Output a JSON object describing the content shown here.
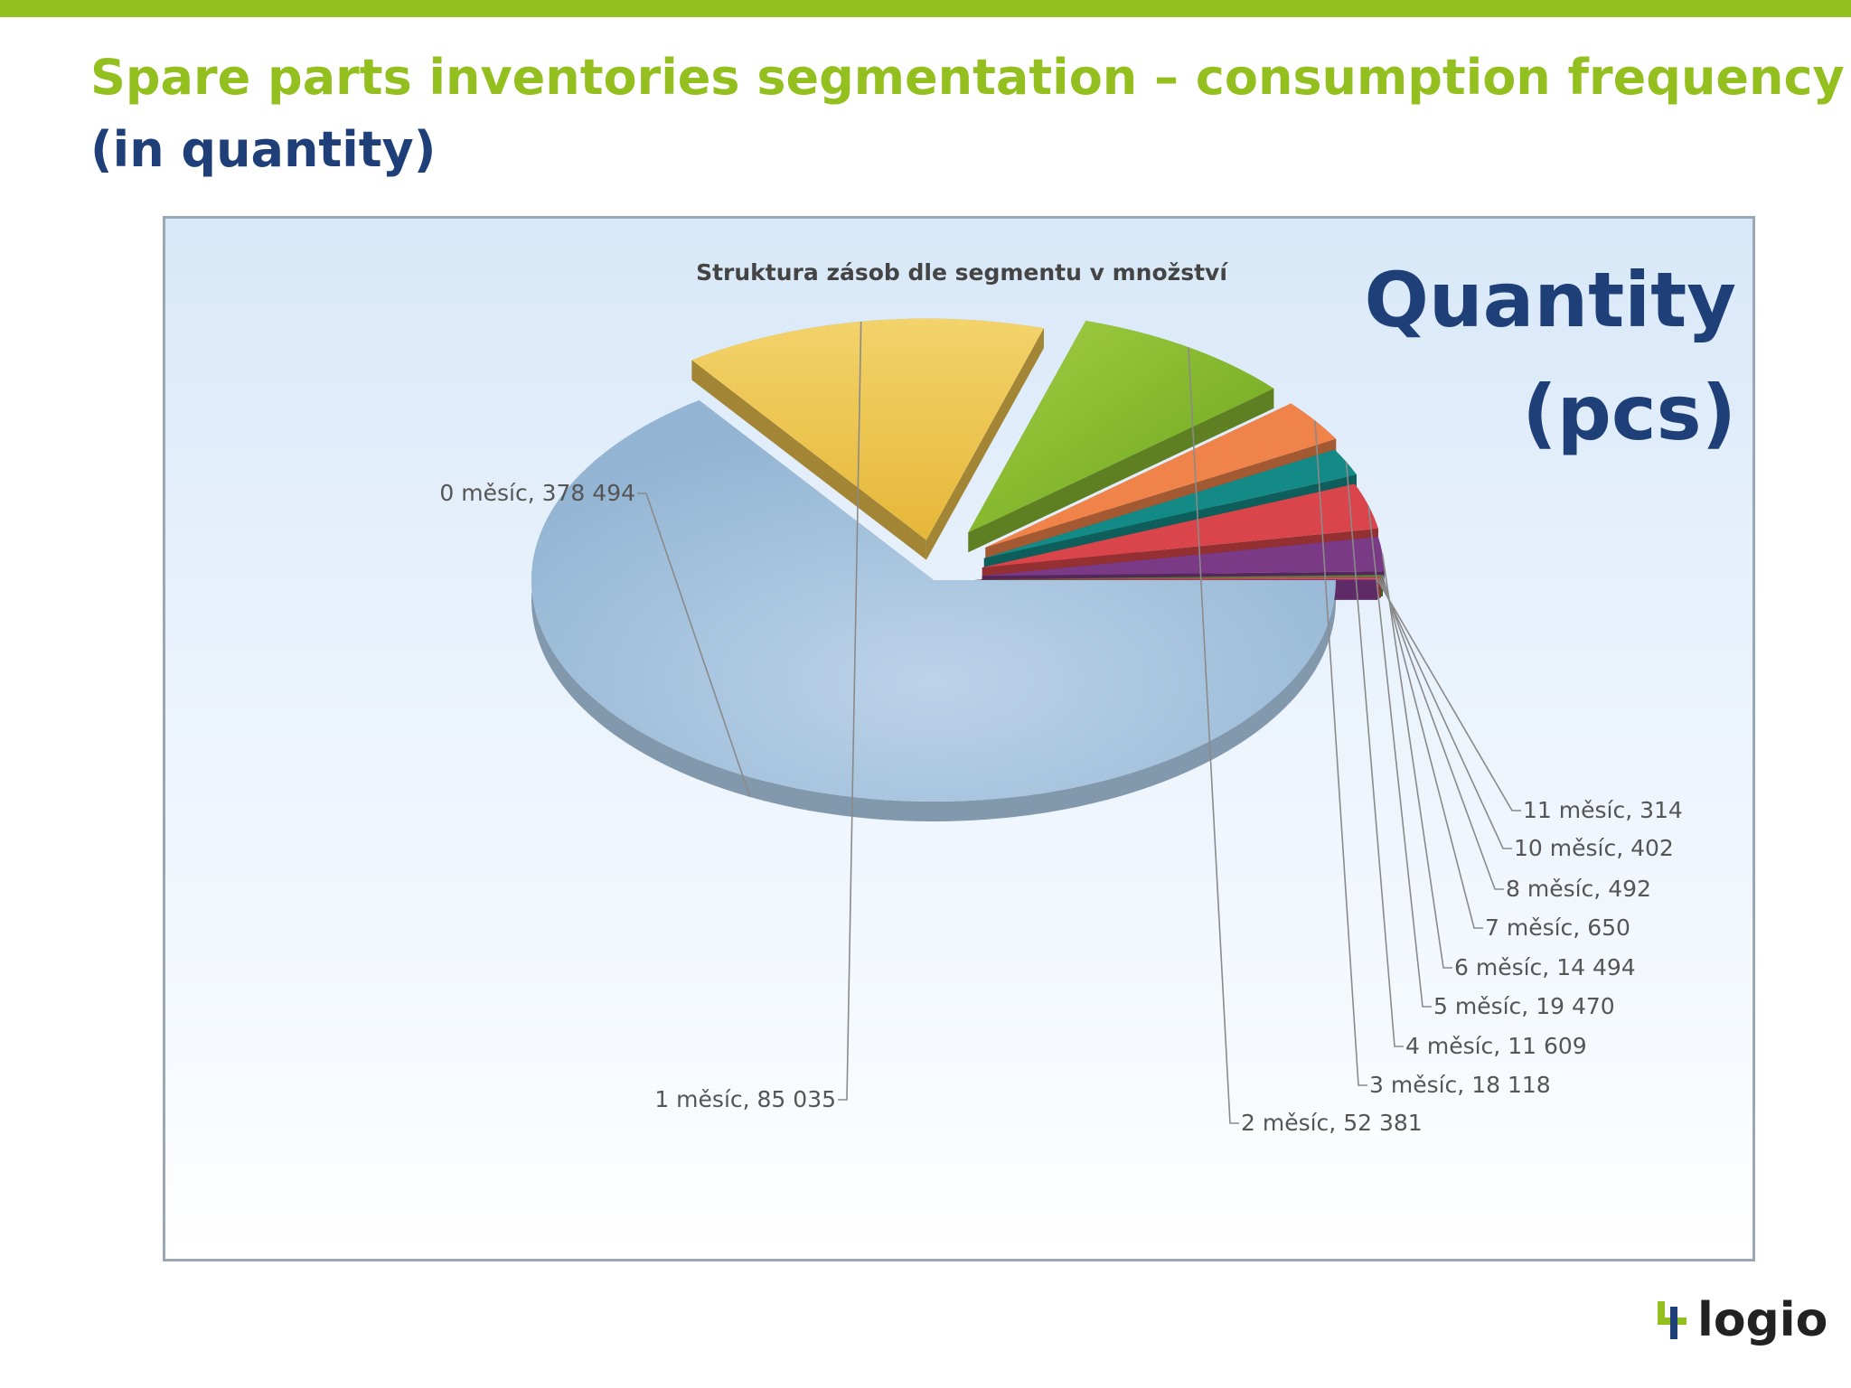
{
  "slide": {
    "title_line1": "Spare parts inventories segmentation – consumption frequency",
    "title_line2": "(in quantity)",
    "quantity_label_line1": "Quantity",
    "quantity_label_line2": "(pcs)",
    "logo_text": "logio",
    "accent_color": "#93c01f",
    "title_blue": "#1f3f78"
  },
  "chart_data": {
    "type": "pie",
    "title": "Struktura zásob dle segmentu v množství",
    "three_d": true,
    "exploded": true,
    "labels": [
      "0 měsíc",
      "1 měsíc",
      "2 měsíc",
      "3 měsíc",
      "4 měsíc",
      "5 měsíc",
      "6 měsíc",
      "7 měsíc",
      "8 měsíc",
      "10 měsíc",
      "11 měsíc"
    ],
    "values": [
      378494,
      85035,
      52381,
      18118,
      11609,
      19470,
      14494,
      650,
      492,
      402,
      314
    ],
    "data_labels": [
      "0 měsíc, 378 494",
      "1 měsíc, 85 035",
      "2 měsíc, 52 381",
      "3 měsíc, 18 118",
      "4 měsíc, 11 609",
      "5 měsíc, 19 470",
      "6 měsíc, 14 494",
      "7 měsíc, 650",
      "8 měsíc, 492",
      "10 měsíc, 402",
      "11 měsíc, 314"
    ],
    "colors": [
      "#a7c4de",
      "#eec44e",
      "#8cbc32",
      "#f0834a",
      "#148a86",
      "#d9454a",
      "#7a3a85",
      "#5a8c3a",
      "#c0504d",
      "#e05555",
      "#8a3f96"
    ]
  }
}
